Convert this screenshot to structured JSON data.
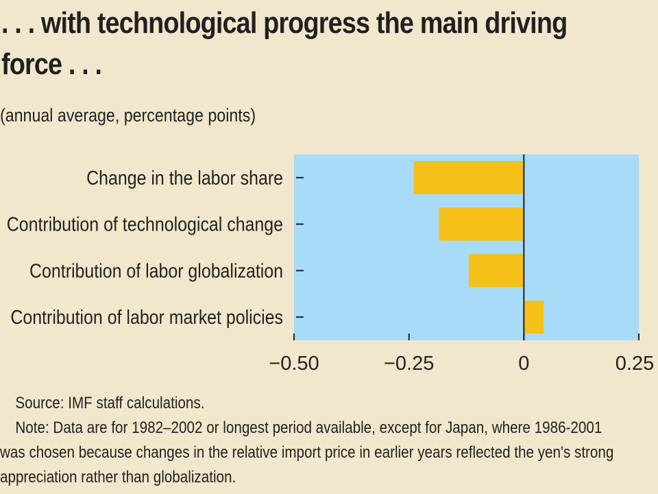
{
  "header": {
    "title_line1": ". . . with technological progress the main driving",
    "title_line2": "force . . .",
    "subtitle": "(annual average, percentage points)"
  },
  "chart_data": {
    "type": "bar",
    "orientation": "horizontal",
    "categories": [
      "Change in the labor share",
      "Contribution of technological change",
      "Contribution of labor globalization",
      "Contribution of labor market policies"
    ],
    "values": [
      -0.24,
      -0.185,
      -0.12,
      0.043
    ],
    "xlim": [
      -0.5,
      0.25
    ],
    "ticks": [
      -0.5,
      -0.25,
      0,
      0.25
    ],
    "tick_labels": [
      "−0.50",
      "−0.25",
      "0",
      "0.25"
    ],
    "colors": {
      "bar": "#f5c018",
      "plot_bg": "#a8dbf7",
      "axis": "#231f20"
    },
    "grid": false
  },
  "notes": {
    "source": "Source: IMF staff calculations.",
    "note_line1": "Note: Data are for 1982–2002 or longest period available, except for Japan, where 1986-2001",
    "note_line2": "was chosen because changes in the relative import price in earlier years reflected the yen's strong",
    "note_line3": "appreciation rather than globalization."
  }
}
